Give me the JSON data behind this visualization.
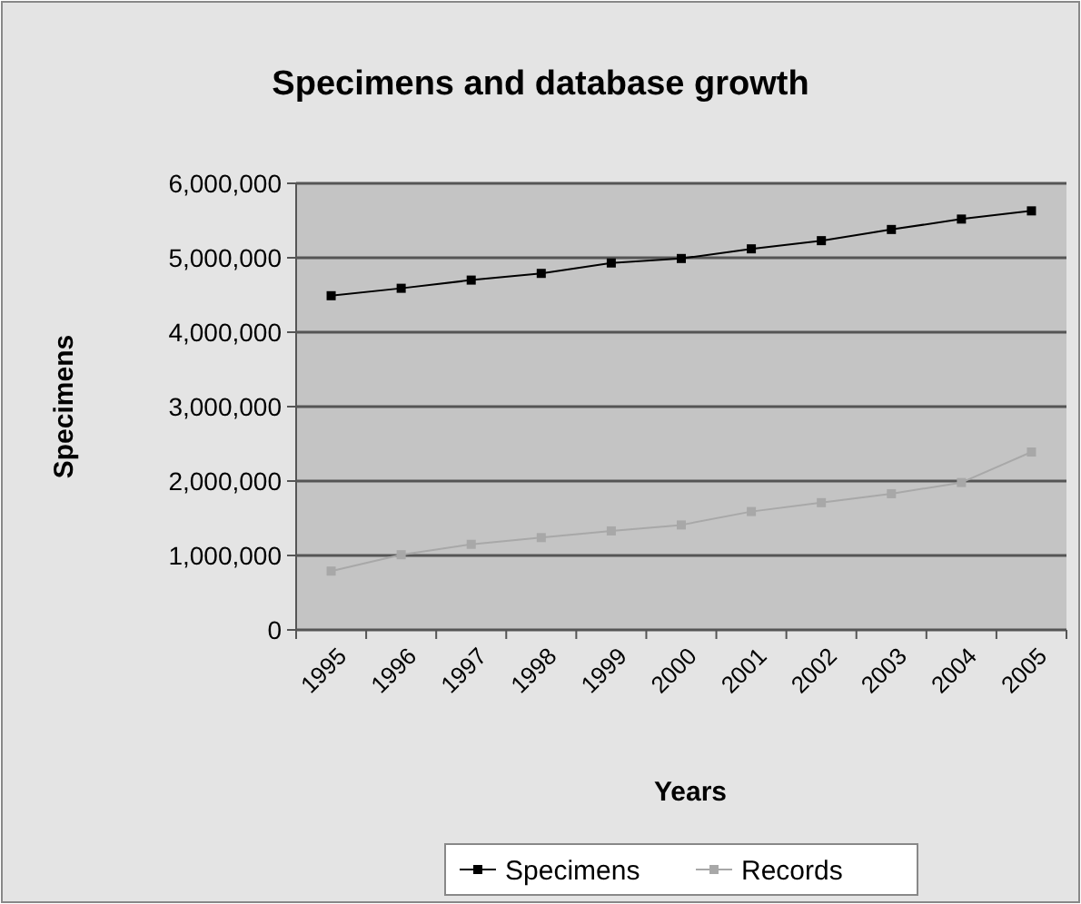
{
  "chart_data": {
    "type": "line",
    "title": "Specimens and database growth",
    "xlabel": "Years",
    "ylabel": "Specimens",
    "categories": [
      "1995",
      "1996",
      "1997",
      "1998",
      "1999",
      "2000",
      "2001",
      "2002",
      "2003",
      "2004",
      "2005"
    ],
    "series": [
      {
        "name": "Specimens",
        "color": "#000000",
        "values": [
          4490000,
          4590000,
          4700000,
          4790000,
          4930000,
          4990000,
          5120000,
          5230000,
          5380000,
          5520000,
          5630000
        ]
      },
      {
        "name": "Records",
        "color": "#a8a8a8",
        "values": [
          790000,
          1010000,
          1150000,
          1240000,
          1330000,
          1410000,
          1590000,
          1710000,
          1830000,
          1980000,
          2390000
        ]
      }
    ],
    "ylim": [
      0,
      6000000
    ],
    "yticks": [
      {
        "value": 0,
        "label": "0"
      },
      {
        "value": 1000000,
        "label": "1,000,000"
      },
      {
        "value": 2000000,
        "label": "2,000,000"
      },
      {
        "value": 3000000,
        "label": "3,000,000"
      },
      {
        "value": 4000000,
        "label": "4,000,000"
      },
      {
        "value": 5000000,
        "label": "5,000,000"
      },
      {
        "value": 6000000,
        "label": "6,000,000"
      }
    ],
    "grid": "y",
    "legend": "bottom",
    "marker": "square",
    "line_style": "solid"
  }
}
